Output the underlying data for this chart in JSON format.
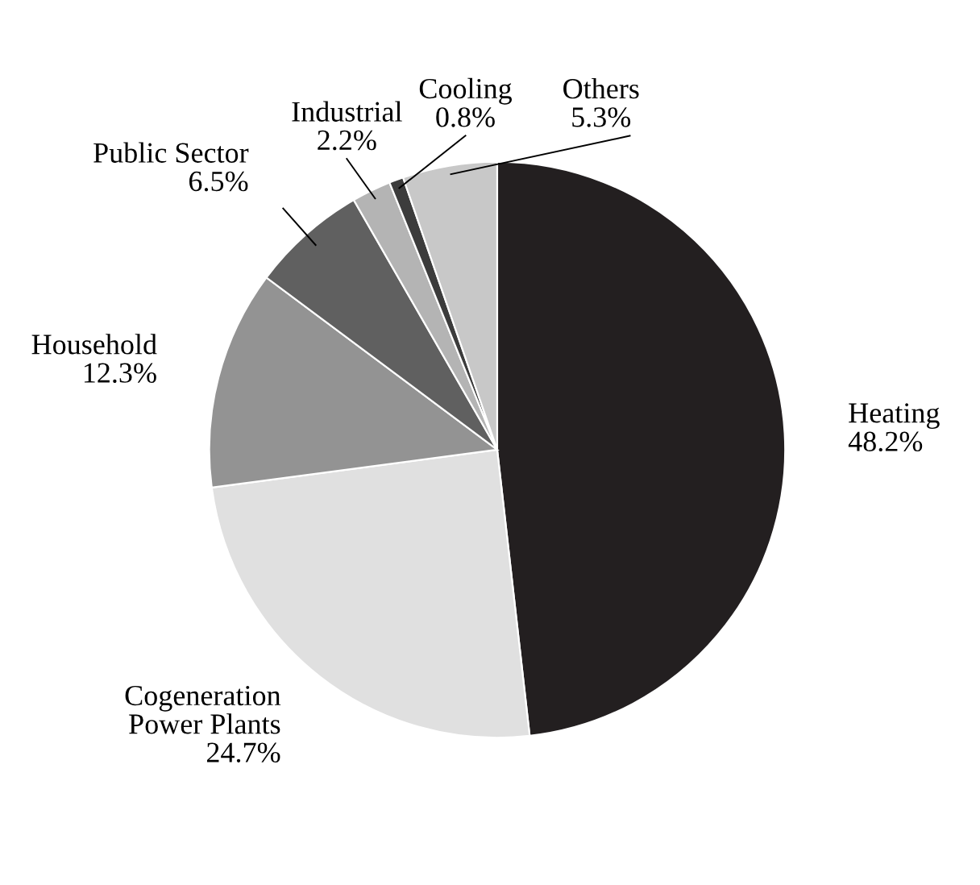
{
  "chart_data": {
    "type": "pie",
    "categories": [
      "Heating",
      "Cogeneration\nPower Plants",
      "Household",
      "Public Sector",
      "Industrial",
      "Cooling",
      "Others"
    ],
    "values": [
      48.2,
      24.7,
      12.3,
      6.5,
      2.2,
      0.8,
      5.3
    ],
    "colors": [
      "#231f20",
      "#e0e0e0",
      "#939393",
      "#606060",
      "#b4b4b4",
      "#3c3c3c",
      "#c8c8c8"
    ],
    "value_labels": [
      "48.2%",
      "24.7%",
      "12.3%",
      "6.5%",
      "2.2%",
      "0.8%",
      "5.3%"
    ]
  }
}
